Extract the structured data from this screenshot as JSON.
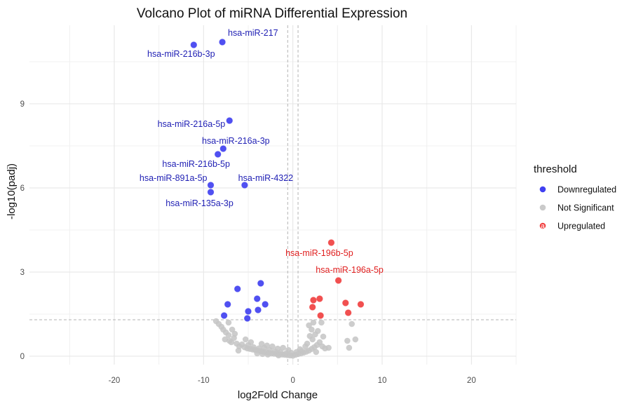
{
  "chart_data": {
    "type": "scatter",
    "title": "Volcano Plot of miRNA Differential Expression",
    "xlabel": "log2Fold Change",
    "ylabel": "-log10(padj)",
    "xlim": [
      -29.5,
      25
    ],
    "ylim": [
      -0.3,
      11.8
    ],
    "x_ticks": [
      -20,
      -10,
      0,
      10,
      20
    ],
    "y_ticks": [
      0,
      3,
      6,
      9
    ],
    "grid": true,
    "threshold_lines": {
      "vertical": [
        -0.58,
        0.58
      ],
      "horizontal": 1.3
    },
    "legend": {
      "title": "threshold",
      "position": "right",
      "entries": [
        {
          "name": "Downregulated",
          "color": "#2b2bef"
        },
        {
          "name": "Not Significant",
          "color": "#c4c4c4"
        },
        {
          "name": "Upregulated",
          "color": "#ef2b2b",
          "marker": "a"
        }
      ]
    },
    "colors": {
      "Downregulated": "#3d3df0",
      "Not Significant": "#c4c4c4",
      "Upregulated": "#f03d3d"
    },
    "series": [
      {
        "name": "Downregulated",
        "points": [
          [
            -11.1,
            11.1
          ],
          [
            -7.9,
            11.2
          ],
          [
            -7.1,
            8.4
          ],
          [
            -7.8,
            7.4
          ],
          [
            -8.4,
            7.2
          ],
          [
            -9.2,
            6.1
          ],
          [
            -9.2,
            5.85
          ],
          [
            -5.4,
            6.1
          ],
          [
            -3.6,
            2.6
          ],
          [
            -6.2,
            2.4
          ],
          [
            -4.0,
            2.05
          ],
          [
            -7.3,
            1.85
          ],
          [
            -3.1,
            1.85
          ],
          [
            -5.0,
            1.6
          ],
          [
            -3.9,
            1.65
          ],
          [
            -7.7,
            1.45
          ],
          [
            -5.1,
            1.35
          ]
        ]
      },
      {
        "name": "Upregulated",
        "points": [
          [
            4.3,
            4.05
          ],
          [
            5.1,
            2.7
          ],
          [
            2.3,
            2.0
          ],
          [
            3.0,
            2.05
          ],
          [
            2.2,
            1.75
          ],
          [
            3.1,
            1.45
          ],
          [
            5.9,
            1.9
          ],
          [
            7.6,
            1.85
          ],
          [
            6.2,
            1.55
          ]
        ]
      },
      {
        "name": "Not Significant",
        "points": [
          [
            -8.3,
            1.15
          ],
          [
            -8.0,
            1.05
          ],
          [
            -7.8,
            0.95
          ],
          [
            -7.5,
            0.85
          ],
          [
            -7.2,
            0.75
          ],
          [
            -7.6,
            0.6
          ],
          [
            -7.1,
            0.55
          ],
          [
            -6.9,
            0.5
          ],
          [
            -7.2,
            1.2
          ],
          [
            -6.8,
            0.95
          ],
          [
            -6.5,
            0.8
          ],
          [
            -6.6,
            0.65
          ],
          [
            -6.3,
            0.45
          ],
          [
            -6.0,
            0.35
          ],
          [
            -5.7,
            0.42
          ],
          [
            -5.4,
            0.32
          ],
          [
            -5.1,
            0.28
          ],
          [
            -4.8,
            0.26
          ],
          [
            -4.5,
            0.24
          ],
          [
            -4.2,
            0.22
          ],
          [
            -3.9,
            0.2
          ],
          [
            -3.6,
            0.18
          ],
          [
            -3.3,
            0.16
          ],
          [
            -3.0,
            0.14
          ],
          [
            -2.7,
            0.12
          ],
          [
            -2.4,
            0.1
          ],
          [
            -2.1,
            0.09
          ],
          [
            -1.8,
            0.08
          ],
          [
            -1.5,
            0.07
          ],
          [
            -1.2,
            0.06
          ],
          [
            -0.9,
            0.05
          ],
          [
            -0.6,
            0.04
          ],
          [
            -0.3,
            0.03
          ],
          [
            0.0,
            0.02
          ],
          [
            -5.0,
            0.4
          ],
          [
            -4.4,
            0.32
          ],
          [
            -3.8,
            0.28
          ],
          [
            -3.2,
            0.3
          ],
          [
            -2.6,
            0.22
          ],
          [
            -2.0,
            0.17
          ],
          [
            -1.4,
            0.14
          ],
          [
            -0.8,
            0.1
          ],
          [
            -4.7,
            0.5
          ],
          [
            -3.5,
            0.44
          ],
          [
            -2.3,
            0.35
          ],
          [
            -1.1,
            0.3
          ],
          [
            -0.5,
            0.22
          ],
          [
            -1.7,
            0.27
          ],
          [
            -2.9,
            0.38
          ],
          [
            -5.3,
            0.6
          ],
          [
            -6.1,
            0.2
          ],
          [
            -4.0,
            0.1
          ],
          [
            -3.4,
            0.08
          ],
          [
            -2.8,
            0.06
          ],
          [
            -1.6,
            0.03
          ],
          [
            0.3,
            0.05
          ],
          [
            0.6,
            0.08
          ],
          [
            0.9,
            0.1
          ],
          [
            1.2,
            0.13
          ],
          [
            1.5,
            0.16
          ],
          [
            1.8,
            0.2
          ],
          [
            2.1,
            0.26
          ],
          [
            2.4,
            0.32
          ],
          [
            2.7,
            0.4
          ],
          [
            3.0,
            0.5
          ],
          [
            3.3,
            0.35
          ],
          [
            3.6,
            0.28
          ],
          [
            2.2,
            0.6
          ],
          [
            1.9,
            0.72
          ],
          [
            2.5,
            0.78
          ],
          [
            2.1,
            0.95
          ],
          [
            1.8,
            1.1
          ],
          [
            2.3,
            1.2
          ],
          [
            0.8,
            0.25
          ],
          [
            1.4,
            0.35
          ],
          [
            1.0,
            0.18
          ],
          [
            3.2,
            1.2
          ],
          [
            2.8,
            0.9
          ],
          [
            3.4,
            0.7
          ],
          [
            4.0,
            0.3
          ],
          [
            2.6,
            0.15
          ],
          [
            0.4,
            0.15
          ],
          [
            1.6,
            0.45
          ],
          [
            6.1,
            0.55
          ],
          [
            6.3,
            0.3
          ],
          [
            6.6,
            1.15
          ],
          [
            7.0,
            0.6
          ],
          [
            -0.2,
            0.12
          ],
          [
            -8.6,
            1.25
          ]
        ]
      }
    ],
    "labels": [
      {
        "text": "hsa-miR-217",
        "x": -7.9,
        "y": 11.2,
        "anchor": "start",
        "dx": 8,
        "dy": -9,
        "series": "Downregulated"
      },
      {
        "text": "hsa-miR-216b-3p",
        "x": -11.1,
        "y": 11.1,
        "anchor": "middle",
        "dx": -18,
        "dy": 17,
        "series": "Downregulated"
      },
      {
        "text": "hsa-miR-216a-5p",
        "x": -7.1,
        "y": 8.4,
        "anchor": "end",
        "dx": -6,
        "dy": 9,
        "series": "Downregulated"
      },
      {
        "text": "hsa-miR-216a-3p",
        "x": -7.8,
        "y": 7.4,
        "anchor": "middle",
        "dx": 18,
        "dy": -7,
        "series": "Downregulated"
      },
      {
        "text": "hsa-miR-216b-5p",
        "x": -8.4,
        "y": 7.2,
        "anchor": "middle",
        "dx": -31,
        "dy": 18,
        "series": "Downregulated"
      },
      {
        "text": "hsa-miR-891a-5p",
        "x": -9.2,
        "y": 6.1,
        "anchor": "end",
        "dx": -5,
        "dy": -6,
        "series": "Downregulated"
      },
      {
        "text": "hsa-miR-4322",
        "x": -5.4,
        "y": 6.1,
        "anchor": "middle",
        "dx": 30,
        "dy": -6,
        "series": "Downregulated"
      },
      {
        "text": "hsa-miR-135a-3p",
        "x": -9.2,
        "y": 5.85,
        "anchor": "middle",
        "dx": -16,
        "dy": 20,
        "series": "Downregulated"
      },
      {
        "text": "hsa-miR-196b-5p",
        "x": 4.3,
        "y": 4.05,
        "anchor": "middle",
        "dx": -17,
        "dy": 19,
        "series": "Upregulated"
      },
      {
        "text": "hsa-miR-196a-5p",
        "x": 5.1,
        "y": 2.7,
        "anchor": "middle",
        "dx": 16,
        "dy": -11,
        "series": "Upregulated"
      }
    ]
  }
}
